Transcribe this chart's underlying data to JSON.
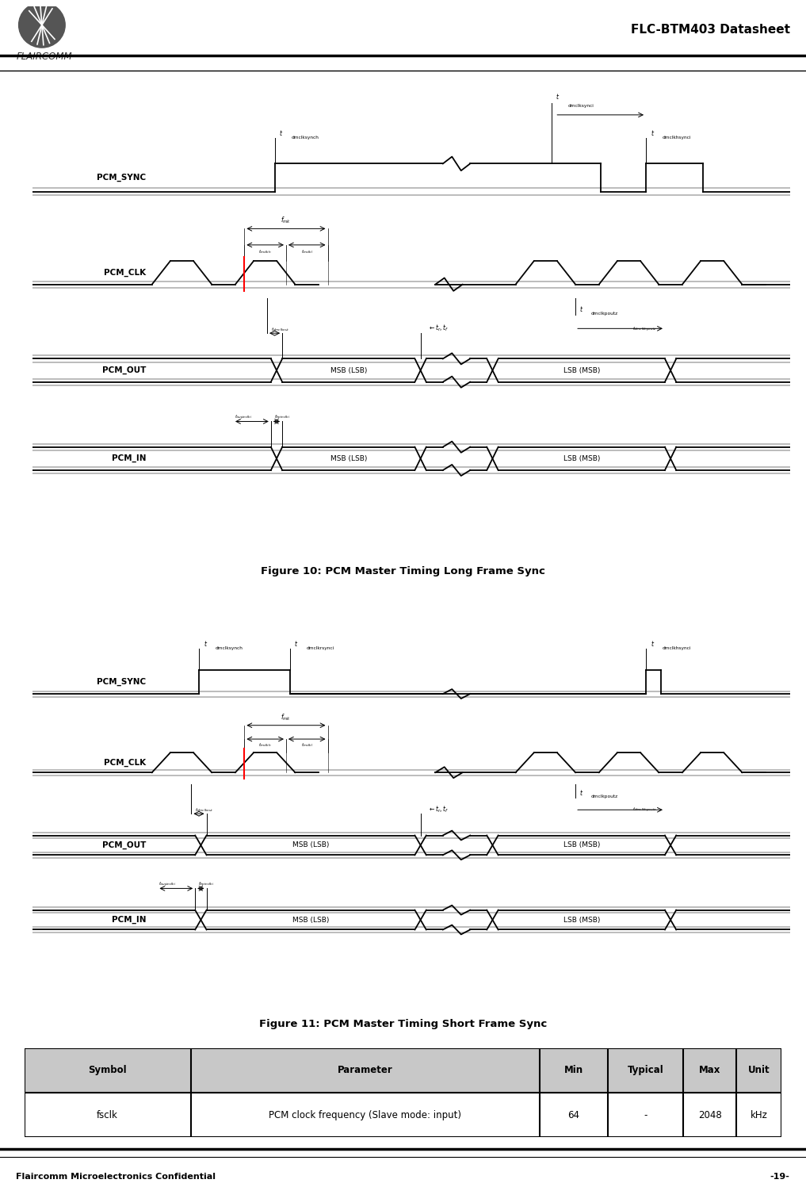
{
  "page_title": "FLC-BTM403 Datasheet",
  "fig10_caption": "Figure 10: PCM Master Timing Long Frame Sync",
  "fig11_caption": "Figure 11: PCM Master Timing Short Frame Sync",
  "footer_left": "Flaircomm Microelectronics Confidential",
  "footer_right": "-19-",
  "table_headers": [
    "Symbol",
    "Parameter",
    "Min",
    "Typical",
    "Max",
    "Unit"
  ],
  "table_row": [
    "fsclk",
    "PCM clock frequency (Slave mode: input)",
    "64",
    "-",
    "2048",
    "kHz"
  ],
  "bg_color": "#ffffff",
  "line_color": "#000000",
  "gray_line": "#aaaaaa",
  "header_bg": "#c8c8c8"
}
